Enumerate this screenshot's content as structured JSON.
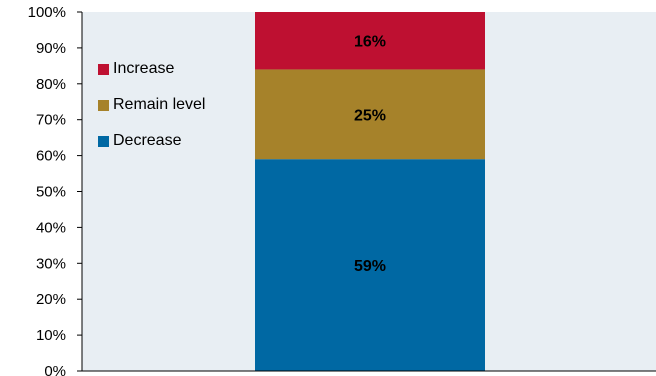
{
  "chart_data": {
    "type": "bar",
    "stacked": true,
    "categories": [
      ""
    ],
    "series": [
      {
        "name": "Decrease",
        "values": [
          59
        ],
        "label": "59%",
        "color": "#0068A3"
      },
      {
        "name": "Remain level",
        "values": [
          25
        ],
        "label": "25%",
        "color": "#A6822A"
      },
      {
        "name": "Increase",
        "values": [
          16
        ],
        "label": "16%",
        "color": "#BE1031"
      }
    ],
    "ylim": [
      0,
      100
    ],
    "yticks": [
      "0%",
      "10%",
      "20%",
      "30%",
      "40%",
      "50%",
      "60%",
      "70%",
      "80%",
      "90%",
      "100%"
    ],
    "title": "",
    "xlabel": "",
    "ylabel": "",
    "grid": false,
    "legend_placement": "top-left",
    "legend_order": [
      "Increase",
      "Remain level",
      "Decrease"
    ],
    "plot_background": "#E8EEF3"
  }
}
